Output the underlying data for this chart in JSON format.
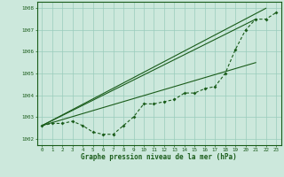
{
  "xlabel": "Graphe pression niveau de la mer (hPa)",
  "bg_color": "#cce8dc",
  "plot_bg_color": "#cce8dc",
  "grid_color": "#99ccbb",
  "line_color": "#1a5c1a",
  "ylim": [
    1001.7,
    1008.3
  ],
  "xlim": [
    -0.5,
    23.5
  ],
  "yticks": [
    1002,
    1003,
    1004,
    1005,
    1006,
    1007,
    1008
  ],
  "xticks": [
    0,
    1,
    2,
    3,
    4,
    5,
    6,
    7,
    8,
    9,
    10,
    11,
    12,
    13,
    14,
    15,
    16,
    17,
    18,
    19,
    20,
    21,
    22,
    23
  ],
  "series_dotted": [
    1002.6,
    1002.7,
    1002.7,
    1002.8,
    1002.6,
    1002.3,
    1002.2,
    1002.2,
    1002.6,
    1003.0,
    1003.6,
    1003.6,
    1003.7,
    1003.8,
    1004.1,
    1004.1,
    1004.3,
    1004.4,
    1005.0,
    1006.1,
    1007.0,
    1007.5,
    1007.5,
    1007.8
  ],
  "line2_x": [
    0,
    22
  ],
  "line2_y": [
    1002.6,
    1008.0
  ],
  "line3_x": [
    0,
    21
  ],
  "line3_y": [
    1002.6,
    1007.5
  ],
  "line4_x": [
    0,
    21
  ],
  "line4_y": [
    1002.6,
    1005.5
  ]
}
